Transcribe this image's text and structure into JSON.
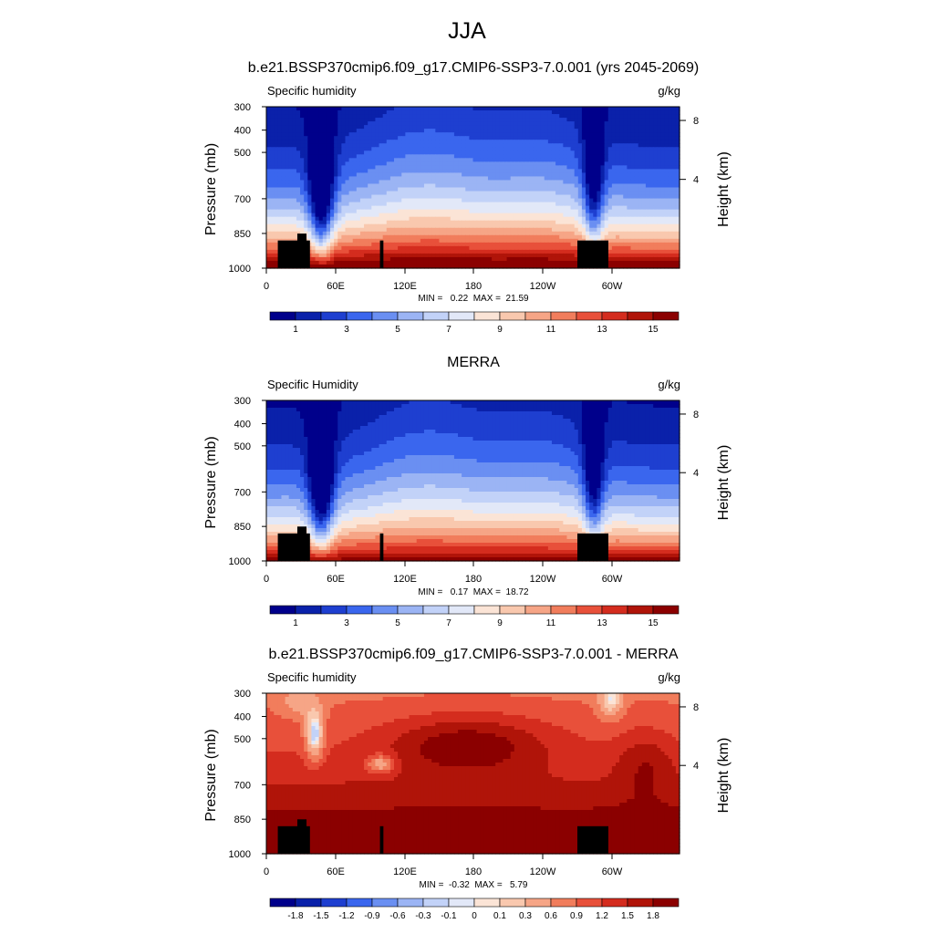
{
  "figure": {
    "title": "JJA"
  },
  "chart_data": [
    {
      "type": "heatmap",
      "title": "b.e21.BSSP370cmip6.f09_g17.CMIP6-SSP3-7.0.001 (yrs 2045-2069)",
      "left_label": "Specific humidity",
      "units": "g/kg",
      "ylabel": "Pressure (mb)",
      "right_label": "Height (km)",
      "x_ticks": [
        "0",
        "60E",
        "120E",
        "180",
        "120W",
        "60W"
      ],
      "y_ticks": [
        "300",
        "400",
        "500",
        "700",
        "850",
        "1000"
      ],
      "right_ticks": [
        "8",
        "4"
      ],
      "ylim": [
        1000,
        300
      ],
      "stats": "MIN =   0.22  MAX =  21.59",
      "colorbar_labels": [
        "1",
        "3",
        "5",
        "7",
        "9",
        "11",
        "13",
        "15"
      ],
      "field": "abs"
    },
    {
      "type": "heatmap",
      "title": "MERRA",
      "left_label": "Specific Humidity",
      "units": "g/kg",
      "ylabel": "Pressure (mb)",
      "right_label": "Height (km)",
      "x_ticks": [
        "0",
        "60E",
        "120E",
        "180",
        "120W",
        "60W"
      ],
      "y_ticks": [
        "300",
        "400",
        "500",
        "700",
        "850",
        "1000"
      ],
      "right_ticks": [
        "8",
        "4"
      ],
      "ylim": [
        1000,
        300
      ],
      "stats": "MIN =   0.17  MAX =  18.72",
      "colorbar_labels": [
        "1",
        "3",
        "5",
        "7",
        "9",
        "11",
        "13",
        "15"
      ],
      "field": "abs"
    },
    {
      "type": "heatmap",
      "title": "b.e21.BSSP370cmip6.f09_g17.CMIP6-SSP3-7.0.001 - MERRA",
      "left_label": "Specific humidity",
      "units": "g/kg",
      "ylabel": "Pressure (mb)",
      "right_label": "Height (km)",
      "x_ticks": [
        "0",
        "60E",
        "120E",
        "180",
        "120W",
        "60W"
      ],
      "y_ticks": [
        "300",
        "400",
        "500",
        "700",
        "850",
        "1000"
      ],
      "right_ticks": [
        "8",
        "4"
      ],
      "ylim": [
        1000,
        300
      ],
      "stats": "MIN =  -0.32  MAX =   5.79",
      "colorbar_labels": [
        "-1.8",
        "-1.5",
        "-1.2",
        "-0.9",
        "-0.6",
        "-0.3",
        "-0.1",
        "0",
        "0.1",
        "0.3",
        "0.6",
        "0.9",
        "1.2",
        "1.5",
        "1.8"
      ],
      "field": "diff"
    }
  ],
  "colors": {
    "abs_scale": [
      "#00008b",
      "#0a21aa",
      "#1e3fd0",
      "#3a66ee",
      "#6a8ff2",
      "#9bb4f4",
      "#c2d2f8",
      "#e2e8f8",
      "#fbe4d6",
      "#f9c8ae",
      "#f6a586",
      "#f17d5c",
      "#e8503a",
      "#d42c1e",
      "#b01409",
      "#8b0000"
    ],
    "diff_scale": [
      "#00008b",
      "#0a21aa",
      "#1e3fd0",
      "#3a66ee",
      "#6a8ff2",
      "#9bb4f4",
      "#c2d2f8",
      "#e2e8f8",
      "#fbe4d6",
      "#f9c8ae",
      "#f6a586",
      "#f17d5c",
      "#e8503a",
      "#d42c1e",
      "#b01409",
      "#8b0000"
    ],
    "topography": "#000000"
  }
}
